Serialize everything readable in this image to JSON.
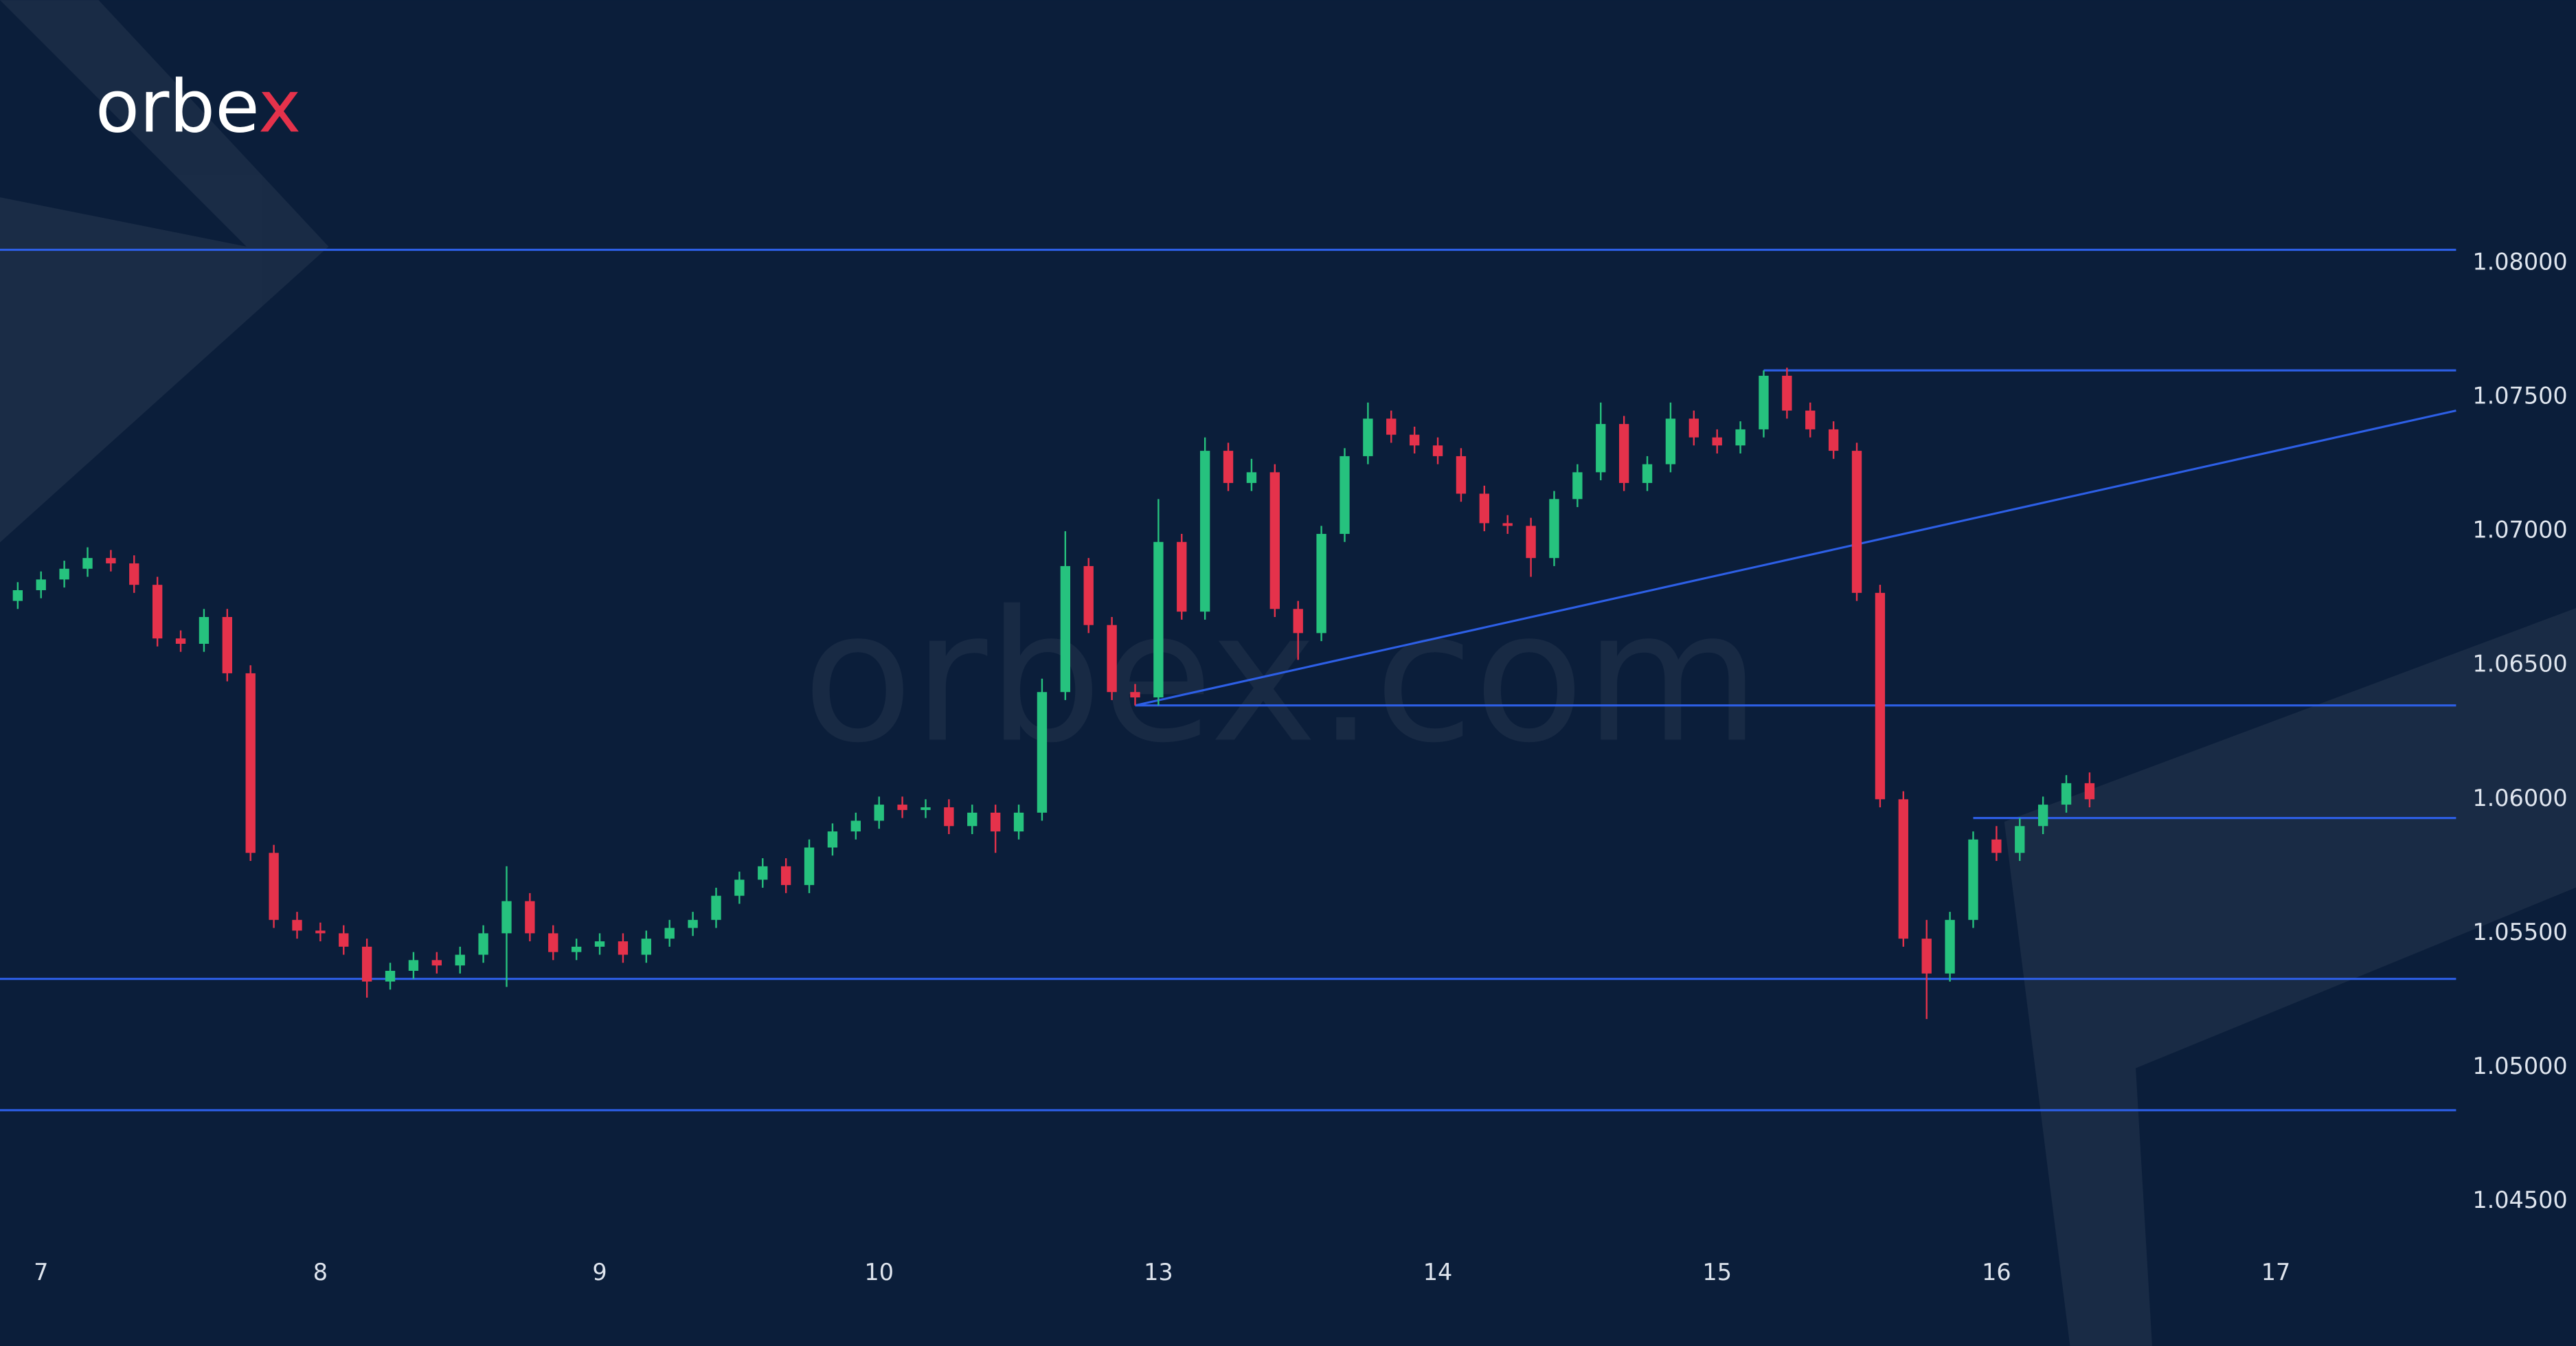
{
  "brand": "orbex",
  "watermark": "orbex.com",
  "chart_data": {
    "type": "candlestick",
    "categories": [
      null,
      "7",
      null,
      null,
      null,
      null,
      null,
      null,
      null,
      null,
      null,
      null,
      null,
      "8",
      null,
      null,
      null,
      null,
      null,
      null,
      null,
      null,
      null,
      null,
      null,
      "9",
      null,
      null,
      null,
      null,
      null,
      null,
      null,
      null,
      null,
      null,
      null,
      "10",
      null,
      null,
      null,
      null,
      null,
      null,
      null,
      null,
      null,
      null,
      null,
      "13",
      null,
      null,
      null,
      null,
      null,
      null,
      null,
      null,
      null,
      null,
      null,
      "14",
      null,
      null,
      null,
      null,
      null,
      null,
      null,
      null,
      null,
      null,
      null,
      "15",
      null,
      null,
      null,
      null,
      null,
      null,
      null,
      null,
      null,
      null,
      null,
      "16",
      null,
      null,
      null,
      null,
      null,
      null,
      null,
      null,
      null,
      null,
      null,
      "17"
    ],
    "open": [
      1.0674,
      1.0678,
      1.0682,
      1.0686,
      1.069,
      1.0688,
      1.068,
      1.066,
      1.0658,
      1.0668,
      1.0647,
      1.058,
      1.0555,
      1.0551,
      1.055,
      1.0545,
      1.0532,
      1.0536,
      1.054,
      1.0538,
      1.0542,
      1.055,
      1.0562,
      1.055,
      1.0543,
      1.0545,
      1.0547,
      1.0542,
      1.0548,
      1.0552,
      1.0555,
      1.0564,
      1.057,
      1.0575,
      1.0568,
      1.0582,
      1.0588,
      1.0592,
      1.0598,
      1.0596,
      1.0597,
      1.059,
      1.0595,
      1.0588,
      1.0595,
      1.064,
      1.0687,
      1.0665,
      1.064,
      1.0638,
      1.0696,
      1.067,
      1.073,
      1.0718,
      1.0722,
      1.0671,
      1.0662,
      1.0699,
      1.0728,
      1.0742,
      1.0736,
      1.0732,
      1.0728,
      1.0714,
      1.0703,
      1.0702,
      1.069,
      1.0712,
      1.0722,
      1.074,
      1.0718,
      1.0725,
      1.0742,
      1.0735,
      1.0732,
      1.0738,
      1.0758,
      1.0745,
      1.0738,
      1.073,
      1.0677,
      1.06,
      1.0548,
      1.0535,
      1.0555,
      1.0585,
      1.058,
      1.059,
      1.0598,
      1.0606,
      null,
      null,
      null,
      null,
      null,
      null,
      null,
      null
    ],
    "high": [
      1.0681,
      1.0685,
      1.0689,
      1.0694,
      1.0693,
      1.0691,
      1.0683,
      1.0663,
      1.0671,
      1.0671,
      1.065,
      1.0583,
      1.0558,
      1.0554,
      1.0553,
      1.0548,
      1.0539,
      1.0543,
      1.0543,
      1.0545,
      1.0553,
      1.0575,
      1.0565,
      1.0553,
      1.0548,
      1.055,
      1.055,
      1.0551,
      1.0555,
      1.0558,
      1.0567,
      1.0573,
      1.0578,
      1.0578,
      1.0585,
      1.0591,
      1.0595,
      1.0601,
      1.0601,
      1.06,
      1.06,
      1.0598,
      1.0598,
      1.0598,
      1.0645,
      1.07,
      1.069,
      1.0668,
      1.0643,
      1.0712,
      1.0699,
      1.0735,
      1.0733,
      1.0727,
      1.0725,
      1.0674,
      1.0702,
      1.0731,
      1.0748,
      1.0745,
      1.0739,
      1.0735,
      1.0731,
      1.0717,
      1.0706,
      1.0705,
      1.0715,
      1.0725,
      1.0748,
      1.0743,
      1.0728,
      1.0748,
      1.0745,
      1.0738,
      1.0741,
      1.076,
      1.0761,
      1.0748,
      1.0741,
      1.0733,
      1.068,
      1.0603,
      1.0555,
      1.0558,
      1.0588,
      1.059,
      1.0593,
      1.0601,
      1.0609,
      1.061,
      null,
      null,
      null,
      null,
      null,
      null,
      null,
      null
    ],
    "low": [
      1.0671,
      1.0675,
      1.0679,
      1.0683,
      1.0685,
      1.0677,
      1.0657,
      1.0655,
      1.0655,
      1.0644,
      1.0577,
      1.0552,
      1.0548,
      1.0547,
      1.0542,
      1.0526,
      1.0529,
      1.0533,
      1.0535,
      1.0535,
      1.0539,
      1.053,
      1.0547,
      1.054,
      1.054,
      1.0542,
      1.0539,
      1.0539,
      1.0545,
      1.0549,
      1.0552,
      1.0561,
      1.0567,
      1.0565,
      1.0565,
      1.0579,
      1.0585,
      1.0589,
      1.0593,
      1.0593,
      1.0587,
      1.0587,
      1.058,
      1.0585,
      1.0592,
      1.0637,
      1.0662,
      1.0637,
      1.0635,
      1.0635,
      1.0667,
      1.0667,
      1.0715,
      1.0715,
      1.0668,
      1.0652,
      1.0659,
      1.0696,
      1.0725,
      1.0733,
      1.0729,
      1.0725,
      1.0711,
      1.07,
      1.0699,
      1.0683,
      1.0687,
      1.0709,
      1.0719,
      1.0715,
      1.0715,
      1.0722,
      1.0732,
      1.0729,
      1.0729,
      1.0735,
      1.0742,
      1.0735,
      1.0727,
      1.0674,
      1.0597,
      1.0545,
      1.0518,
      1.0532,
      1.0552,
      1.0577,
      1.0577,
      1.0587,
      1.0595,
      1.0597,
      null,
      null,
      null,
      null,
      null,
      null,
      null,
      null
    ],
    "close": [
      1.0678,
      1.0682,
      1.0686,
      1.069,
      1.0688,
      1.068,
      1.066,
      1.0658,
      1.0668,
      1.0647,
      1.058,
      1.0555,
      1.0551,
      1.055,
      1.0545,
      1.0532,
      1.0536,
      1.054,
      1.0538,
      1.0542,
      1.055,
      1.0562,
      1.055,
      1.0543,
      1.0545,
      1.0547,
      1.0542,
      1.0548,
      1.0552,
      1.0555,
      1.0564,
      1.057,
      1.0575,
      1.0568,
      1.0582,
      1.0588,
      1.0592,
      1.0598,
      1.0596,
      1.0597,
      1.059,
      1.0595,
      1.0588,
      1.0595,
      1.064,
      1.0687,
      1.0665,
      1.064,
      1.0638,
      1.0696,
      1.067,
      1.073,
      1.0718,
      1.0722,
      1.0671,
      1.0662,
      1.0699,
      1.0728,
      1.0742,
      1.0736,
      1.0732,
      1.0728,
      1.0714,
      1.0703,
      1.0702,
      1.069,
      1.0712,
      1.0722,
      1.074,
      1.0718,
      1.0725,
      1.0742,
      1.0735,
      1.0732,
      1.0738,
      1.0758,
      1.0745,
      1.0738,
      1.073,
      1.0677,
      1.06,
      1.0548,
      1.0535,
      1.0555,
      1.0585,
      1.058,
      1.059,
      1.0598,
      1.0606,
      1.06,
      null,
      null,
      null,
      null,
      null,
      null,
      null,
      null
    ],
    "up_color": "#26c27e",
    "down_color": "#e5324b",
    "line_color": "#2d5fe6",
    "levels": [
      1.0805,
      1.076,
      1.0635,
      1.0593,
      1.0533,
      1.0484
    ],
    "trendline": [
      1.0635,
      1.0745
    ],
    "ylim": [
      1.0435,
      1.0835
    ],
    "yticks": [
      {
        "value": 1.08,
        "label": "1.08000"
      },
      {
        "value": 1.075,
        "label": "1.07500"
      },
      {
        "value": 1.07,
        "label": "1.07000"
      },
      {
        "value": 1.065,
        "label": "1.06500"
      },
      {
        "value": 1.06,
        "label": "1.06000"
      },
      {
        "value": 1.055,
        "label": "1.05500"
      },
      {
        "value": 1.05,
        "label": "1.05000"
      },
      {
        "value": 1.045,
        "label": "1.04500"
      }
    ]
  }
}
